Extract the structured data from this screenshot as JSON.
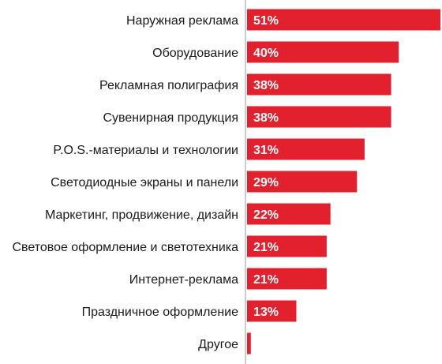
{
  "colors": {
    "bar": "#e3202e",
    "axis": "#bdbdbd",
    "text": "#1a1a1a",
    "value_text": "#ffffff"
  },
  "chart_data": {
    "type": "bar",
    "orientation": "horizontal",
    "categories": [
      "Наружная реклама",
      "Оборудование",
      "Рекламная полиграфия",
      "Сувенирная продукция",
      "P.O.S.-материалы и технологии",
      "Светодиодные экраны и панели",
      "Маркетинг, продвижение, дизайн",
      "Световое оформление и светотехника",
      "Интернет-реклама",
      "Праздничное оформление",
      "Другое"
    ],
    "values": [
      51,
      40,
      38,
      38,
      31,
      29,
      22,
      21,
      21,
      13,
      1
    ],
    "value_labels": [
      "51%",
      "40%",
      "38%",
      "38%",
      "31%",
      "29%",
      "22%",
      "21%",
      "21%",
      "13%",
      ""
    ],
    "xlim": [
      0,
      51
    ],
    "grid": false,
    "legend": "none"
  }
}
